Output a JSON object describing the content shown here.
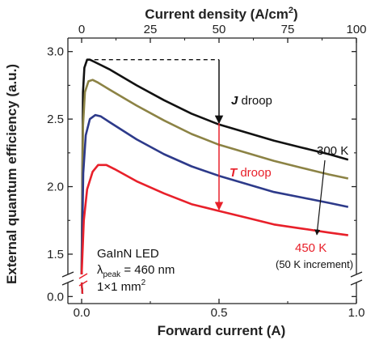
{
  "chart_data": {
    "type": "line",
    "xlabel": "Forward current (A)",
    "x2label_main": "Current density (A/cm",
    "x2label_sup": "2",
    "x2label_end": ")",
    "ylabel": "External quantum efficiency (a.u.)",
    "xlim": [
      -0.05,
      1.0
    ],
    "ylim_main": [
      1.35,
      3.1
    ],
    "ylim_lower": [
      -0.05,
      0.1
    ],
    "x_ticks": [
      0.0,
      0.5,
      1.0
    ],
    "x_tick_labels": [
      "0.0",
      "0.5",
      "1.0"
    ],
    "x2_ticks": [
      0,
      25,
      50,
      75,
      100
    ],
    "x2_tick_labels": [
      "0",
      "25",
      "50",
      "75",
      "100"
    ],
    "y_ticks": [
      1.5,
      2.0,
      2.5,
      3.0
    ],
    "y_tick_labels": [
      "1.5",
      "2.0",
      "2.5",
      "3.0"
    ],
    "y_lower_ticks": [
      0.0
    ],
    "y_lower_tick_labels": [
      "0.0"
    ],
    "series": [
      {
        "color": "#111111",
        "x": [
          0.0,
          0.005,
          0.01,
          0.02,
          0.03,
          0.05,
          0.1,
          0.2,
          0.3,
          0.4,
          0.5,
          0.6,
          0.7,
          0.8,
          0.9,
          0.97
        ],
        "y": [
          1.4,
          2.7,
          2.88,
          2.94,
          2.94,
          2.92,
          2.87,
          2.75,
          2.64,
          2.54,
          2.46,
          2.4,
          2.34,
          2.29,
          2.24,
          2.2
        ]
      },
      {
        "color": "#8c8345",
        "x": [
          0.0,
          0.005,
          0.012,
          0.025,
          0.04,
          0.06,
          0.1,
          0.2,
          0.3,
          0.4,
          0.5,
          0.6,
          0.7,
          0.8,
          0.9,
          0.97
        ],
        "y": [
          1.4,
          2.45,
          2.7,
          2.78,
          2.79,
          2.77,
          2.72,
          2.6,
          2.49,
          2.39,
          2.31,
          2.25,
          2.19,
          2.14,
          2.09,
          2.06
        ]
      },
      {
        "color": "#2d3a8a",
        "x": [
          0.0,
          0.006,
          0.015,
          0.03,
          0.05,
          0.07,
          0.1,
          0.2,
          0.3,
          0.4,
          0.5,
          0.6,
          0.7,
          0.8,
          0.9,
          0.97
        ],
        "y": [
          1.4,
          2.1,
          2.38,
          2.5,
          2.53,
          2.52,
          2.48,
          2.35,
          2.24,
          2.15,
          2.08,
          2.02,
          1.96,
          1.92,
          1.88,
          1.85
        ]
      },
      {
        "color": "#e8202a",
        "x": [
          0.0,
          0.008,
          0.02,
          0.04,
          0.06,
          0.09,
          0.12,
          0.2,
          0.3,
          0.4,
          0.5,
          0.6,
          0.7,
          0.8,
          0.9,
          0.97
        ],
        "y": [
          1.4,
          1.75,
          1.98,
          2.11,
          2.16,
          2.16,
          2.13,
          2.04,
          1.95,
          1.87,
          1.82,
          1.77,
          1.72,
          1.69,
          1.66,
          1.64
        ]
      }
    ],
    "dashed_reference": {
      "y": 2.94,
      "x_from": 0.02,
      "x_to": 0.5
    },
    "annotations": {
      "j_droop_bold": "J",
      "j_droop_rest": " droop",
      "t_droop_bold": "T",
      "t_droop_rest": " droop",
      "label_300k": "300 K",
      "label_450k": "450 K",
      "increment": "(50 K increment)",
      "device": "GaInN LED",
      "lambda_symbol": "λ",
      "lambda_sub": "peak",
      "lambda_value": " = 460 nm",
      "size_main": "1×1 mm",
      "size_sup": "2"
    },
    "colors": {
      "axis": "#222222",
      "j_droop_arrow": "#111111",
      "t_droop_arrow": "#e8202a",
      "t_droop_text": "#e8202a",
      "label_450k": "#e8202a"
    }
  }
}
